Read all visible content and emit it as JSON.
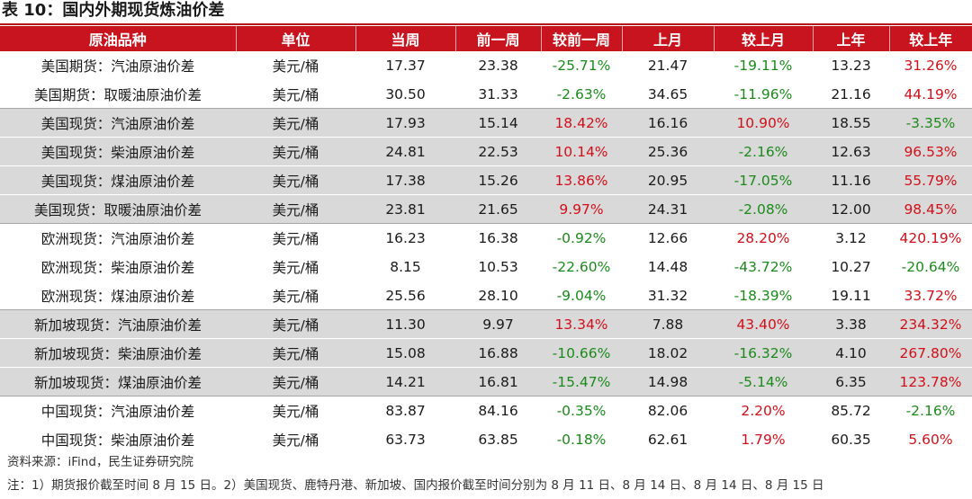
{
  "title": "表 10：国内外期现货炼油价差",
  "columns": [
    "原油品种",
    "单位",
    "当周",
    "前一周",
    "较前一周",
    "上月",
    "较上月",
    "上年",
    "较上年"
  ],
  "rows": [
    {
      "name": "美国期货：汽油原油价差",
      "unit": "美元/桶",
      "cur": "17.37",
      "prev_week": "23.38",
      "chg_week": "-25.71%",
      "last_month": "21.47",
      "chg_month": "-19.11%",
      "last_year": "13.23",
      "chg_year": "31.26%"
    },
    {
      "name": "美国期货：取暖油原油价差",
      "unit": "美元/桶",
      "cur": "30.50",
      "prev_week": "31.33",
      "chg_week": "-2.63%",
      "last_month": "34.65",
      "chg_month": "-11.96%",
      "last_year": "21.16",
      "chg_year": "44.19%"
    },
    {
      "name": "美国现货：汽油原油价差",
      "unit": "美元/桶",
      "cur": "17.93",
      "prev_week": "15.14",
      "chg_week": "18.42%",
      "last_month": "16.16",
      "chg_month": "10.90%",
      "last_year": "18.55",
      "chg_year": "-3.35%"
    },
    {
      "name": "美国现货：柴油原油价差",
      "unit": "美元/桶",
      "cur": "24.81",
      "prev_week": "22.53",
      "chg_week": "10.14%",
      "last_month": "25.36",
      "chg_month": "-2.16%",
      "last_year": "12.63",
      "chg_year": "96.53%"
    },
    {
      "name": "美国现货：煤油原油价差",
      "unit": "美元/桶",
      "cur": "17.38",
      "prev_week": "15.26",
      "chg_week": "13.86%",
      "last_month": "20.95",
      "chg_month": "-17.05%",
      "last_year": "11.16",
      "chg_year": "55.79%"
    },
    {
      "name": "美国现货：取暖油原油价差",
      "unit": "美元/桶",
      "cur": "23.81",
      "prev_week": "21.65",
      "chg_week": "9.97%",
      "last_month": "24.31",
      "chg_month": "-2.08%",
      "last_year": "12.00",
      "chg_year": "98.45%"
    },
    {
      "name": "欧洲现货：汽油原油价差",
      "unit": "美元/桶",
      "cur": "16.23",
      "prev_week": "16.38",
      "chg_week": "-0.92%",
      "last_month": "12.66",
      "chg_month": "28.20%",
      "last_year": "3.12",
      "chg_year": "420.19%"
    },
    {
      "name": "欧洲现货：柴油原油价差",
      "unit": "美元/桶",
      "cur": "8.15",
      "prev_week": "10.53",
      "chg_week": "-22.60%",
      "last_month": "14.48",
      "chg_month": "-43.72%",
      "last_year": "10.27",
      "chg_year": "-20.64%"
    },
    {
      "name": "欧洲现货：煤油原油价差",
      "unit": "美元/桶",
      "cur": "25.56",
      "prev_week": "28.10",
      "chg_week": "-9.04%",
      "last_month": "31.32",
      "chg_month": "-18.39%",
      "last_year": "19.11",
      "chg_year": "33.72%"
    },
    {
      "name": "新加坡现货：汽油原油价差",
      "unit": "美元/桶",
      "cur": "11.30",
      "prev_week": "9.97",
      "chg_week": "13.34%",
      "last_month": "7.88",
      "chg_month": "43.40%",
      "last_year": "3.38",
      "chg_year": "234.32%"
    },
    {
      "name": "新加坡现货：柴油原油价差",
      "unit": "美元/桶",
      "cur": "15.08",
      "prev_week": "16.88",
      "chg_week": "-10.66%",
      "last_month": "18.02",
      "chg_month": "-16.32%",
      "last_year": "4.10",
      "chg_year": "267.80%"
    },
    {
      "name": "新加坡现货：煤油原油价差",
      "unit": "美元/桶",
      "cur": "14.21",
      "prev_week": "16.81",
      "chg_week": "-15.47%",
      "last_month": "14.98",
      "chg_month": "-5.14%",
      "last_year": "6.35",
      "chg_year": "123.78%"
    },
    {
      "name": "中国现货：汽油原油价差",
      "unit": "美元/桶",
      "cur": "83.87",
      "prev_week": "84.16",
      "chg_week": "-0.35%",
      "last_month": "82.06",
      "chg_month": "2.20%",
      "last_year": "85.72",
      "chg_year": "-2.16%"
    },
    {
      "name": "中国现货：柴油原油价差",
      "unit": "美元/桶",
      "cur": "63.73",
      "prev_week": "63.85",
      "chg_week": "-0.18%",
      "last_month": "62.61",
      "chg_month": "1.79%",
      "last_year": "60.35",
      "chg_year": "5.60%"
    }
  ],
  "source": "资料来源：iFind，民生证券研究院",
  "note": "注：1）期货报价截至时间 8 月 15 日。2）美国现货、鹿特丹港、新加坡、国内报价截至时间分别为 8 月 11 日、8 月 14 日、8 月 14 日、8 月 15 日",
  "colors": {
    "header_bg": "#c8141e",
    "positive": "#d0101a",
    "negative": "#1b8a1b",
    "shade": "#d9d9d9"
  }
}
